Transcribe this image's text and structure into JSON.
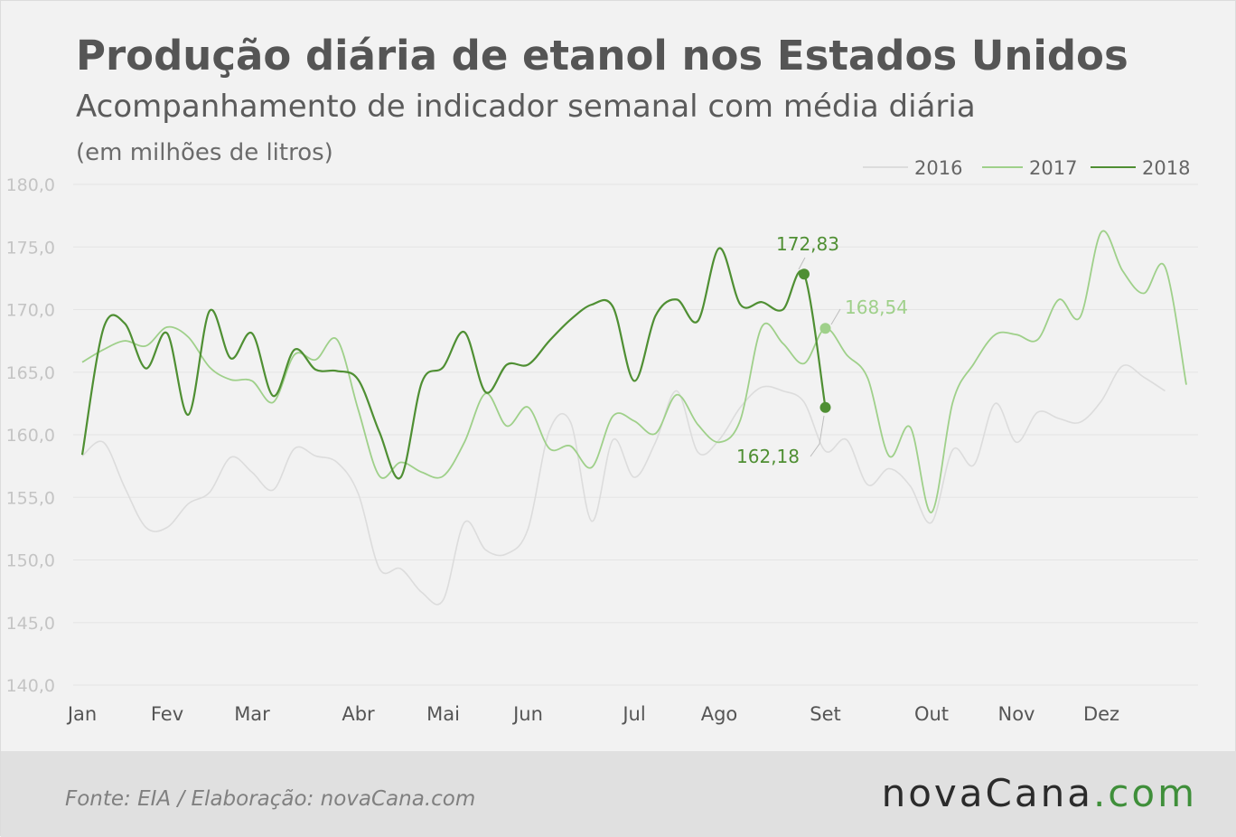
{
  "header": {
    "title": "Produção diária de etanol nos Estados Unidos",
    "subtitle": "Acompanhamento de indicador semanal com média diária",
    "unit_note": "(em milhões de litros)"
  },
  "footer": {
    "source": "Fonte:  EIA / Elaboração:  novaCana.com",
    "logo_main": "novaCana",
    "logo_suffix": ".com"
  },
  "colors": {
    "s2016": "#dcdcdc",
    "s2017": "#9fd08a",
    "s2018": "#4f8f33",
    "grid": "#e4e4e4"
  },
  "chart_data": {
    "type": "line",
    "title": "Produção diária de etanol nos Estados Unidos",
    "subtitle": "Acompanhamento de indicador semanal com média diária",
    "ylabel": "(em milhões de litros)",
    "ylim": [
      140,
      180
    ],
    "yticks": [
      "140,0",
      "145,0",
      "150,0",
      "155,0",
      "160,0",
      "165,0",
      "170,0",
      "175,0",
      "180,0"
    ],
    "ytick_values": [
      140,
      145,
      150,
      155,
      160,
      165,
      170,
      175,
      180
    ],
    "xlim": [
      0,
      52
    ],
    "month_labels": [
      "Jan",
      "Fev",
      "Mar",
      "Abr",
      "Mai",
      "Jun",
      "Jul",
      "Ago",
      "Set",
      "Out",
      "Nov",
      "Dez"
    ],
    "month_weeks": [
      0,
      4,
      8,
      13,
      17,
      21,
      26,
      30,
      35,
      40,
      44,
      48
    ],
    "x_unit": "week",
    "legend": {
      "position": "top-right",
      "entries": [
        "2016",
        "2017",
        "2018"
      ]
    },
    "grid": true,
    "series": [
      {
        "name": "2016",
        "x": [
          0,
          1,
          2,
          3,
          4,
          5,
          6,
          7,
          8,
          9,
          10,
          11,
          12,
          13,
          14,
          15,
          16,
          17,
          18,
          19,
          20,
          21,
          22,
          23,
          24,
          25,
          26,
          27,
          28,
          29,
          30,
          31,
          32,
          33,
          34,
          35,
          36,
          37,
          38,
          39,
          40,
          41,
          42,
          43,
          44,
          45,
          46,
          47,
          48,
          49,
          50,
          51
        ],
        "values": [
          158.3,
          159.4,
          155.8,
          152.6,
          152.6,
          154.5,
          155.4,
          158.2,
          157.0,
          155.6,
          158.9,
          158.3,
          157.8,
          155.3,
          149.3,
          149.3,
          147.4,
          146.8,
          153.0,
          150.8,
          150.5,
          152.5,
          160.3,
          161.0,
          153.1,
          159.6,
          156.6,
          159.4,
          163.5,
          158.6,
          159.6,
          162.2,
          163.8,
          163.5,
          162.6,
          158.7,
          159.6,
          156.0,
          157.3,
          155.9,
          153.0,
          158.8,
          157.6,
          162.5,
          159.4,
          161.8,
          161.3,
          161.0,
          162.7,
          165.5,
          164.6,
          163.5
        ]
      },
      {
        "name": "2017",
        "x": [
          0,
          1,
          2,
          3,
          4,
          5,
          6,
          7,
          8,
          9,
          10,
          11,
          12,
          13,
          14,
          15,
          16,
          17,
          18,
          19,
          20,
          21,
          22,
          23,
          24,
          25,
          26,
          27,
          28,
          29,
          30,
          31,
          32,
          33,
          34,
          35,
          36,
          37,
          38,
          39,
          40,
          41,
          42,
          43,
          44,
          45,
          46,
          47,
          48,
          49,
          50,
          51,
          52
        ],
        "values": [
          165.8,
          166.8,
          167.5,
          167.1,
          168.6,
          167.8,
          165.4,
          164.4,
          164.3,
          162.6,
          166.4,
          166.0,
          167.6,
          162.0,
          156.7,
          157.8,
          157.0,
          156.7,
          159.4,
          163.3,
          160.7,
          162.2,
          158.9,
          159.1,
          157.4,
          161.5,
          161.1,
          160.1,
          163.2,
          160.8,
          159.4,
          161.2,
          168.6,
          167.3,
          165.7,
          168.5,
          166.4,
          164.5,
          158.3,
          160.6,
          153.8,
          162.6,
          165.7,
          168.0,
          168.0,
          167.6,
          170.8,
          169.4,
          176.2,
          173.1,
          171.3,
          173.4,
          164.0
        ]
      },
      {
        "name": "2018",
        "x": [
          0,
          1,
          2,
          3,
          4,
          5,
          6,
          7,
          8,
          9,
          10,
          11,
          12,
          13,
          14,
          15,
          16,
          17,
          18,
          19,
          20,
          21,
          22,
          23,
          24,
          25,
          26,
          27,
          28,
          29,
          30,
          31,
          32,
          33,
          34,
          35
        ],
        "values": [
          158.4,
          168.5,
          168.9,
          165.3,
          168.1,
          161.6,
          169.9,
          166.1,
          168.1,
          163.1,
          166.8,
          165.2,
          165.1,
          164.4,
          160.2,
          156.6,
          164.2,
          165.4,
          168.2,
          163.4,
          165.6,
          165.6,
          167.5,
          169.2,
          170.4,
          170.2,
          164.3,
          169.5,
          170.8,
          169.1,
          174.9,
          170.4,
          170.6,
          170.0,
          172.83,
          162.18
        ]
      }
    ],
    "annotations": [
      {
        "label": "172,83",
        "series": "2018",
        "x": 34,
        "y": 172.83
      },
      {
        "label": "162,18",
        "series": "2018",
        "x": 35,
        "y": 162.18
      },
      {
        "label": "168,54",
        "series": "2017",
        "x": 35,
        "y": 168.5
      }
    ]
  }
}
